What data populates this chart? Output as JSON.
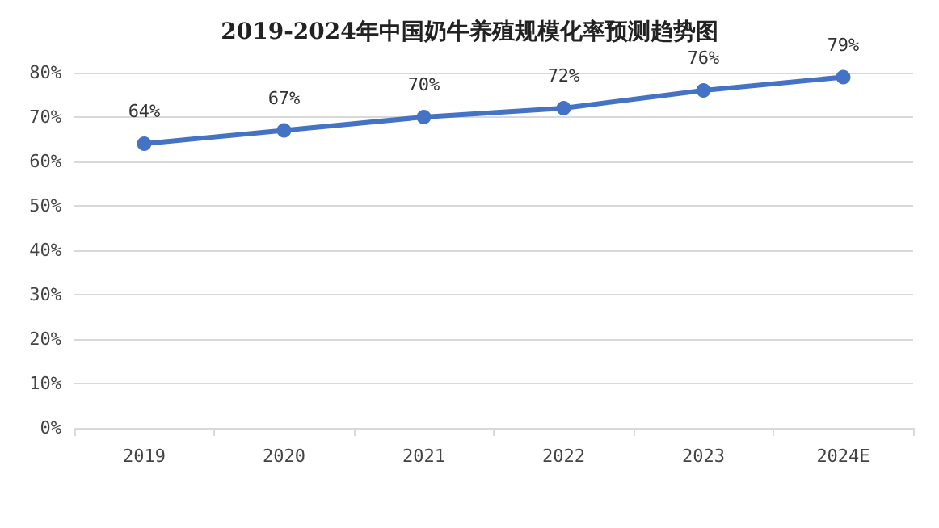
{
  "chart_data": {
    "type": "line",
    "title": "2019-2024年中国奶牛养殖规模化率预测趋势图",
    "categories": [
      "2019",
      "2020",
      "2021",
      "2022",
      "2023",
      "2024E"
    ],
    "values": [
      64,
      67,
      70,
      72,
      76,
      79
    ],
    "value_labels": [
      "64%",
      "67%",
      "70%",
      "72%",
      "76%",
      "79%"
    ],
    "color": "#4472c4",
    "marker": "circle",
    "line_style": "solid",
    "grid": "y",
    "ylim": [
      0,
      80
    ],
    "yticks": [
      {
        "value": 0,
        "label": "0%"
      },
      {
        "value": 10,
        "label": "10%"
      },
      {
        "value": 20,
        "label": "20%"
      },
      {
        "value": 30,
        "label": "30%"
      },
      {
        "value": 40,
        "label": "40%"
      },
      {
        "value": 50,
        "label": "50%"
      },
      {
        "value": 60,
        "label": "60%"
      },
      {
        "value": 70,
        "label": "70%"
      },
      {
        "value": 80,
        "label": "80%"
      }
    ]
  }
}
